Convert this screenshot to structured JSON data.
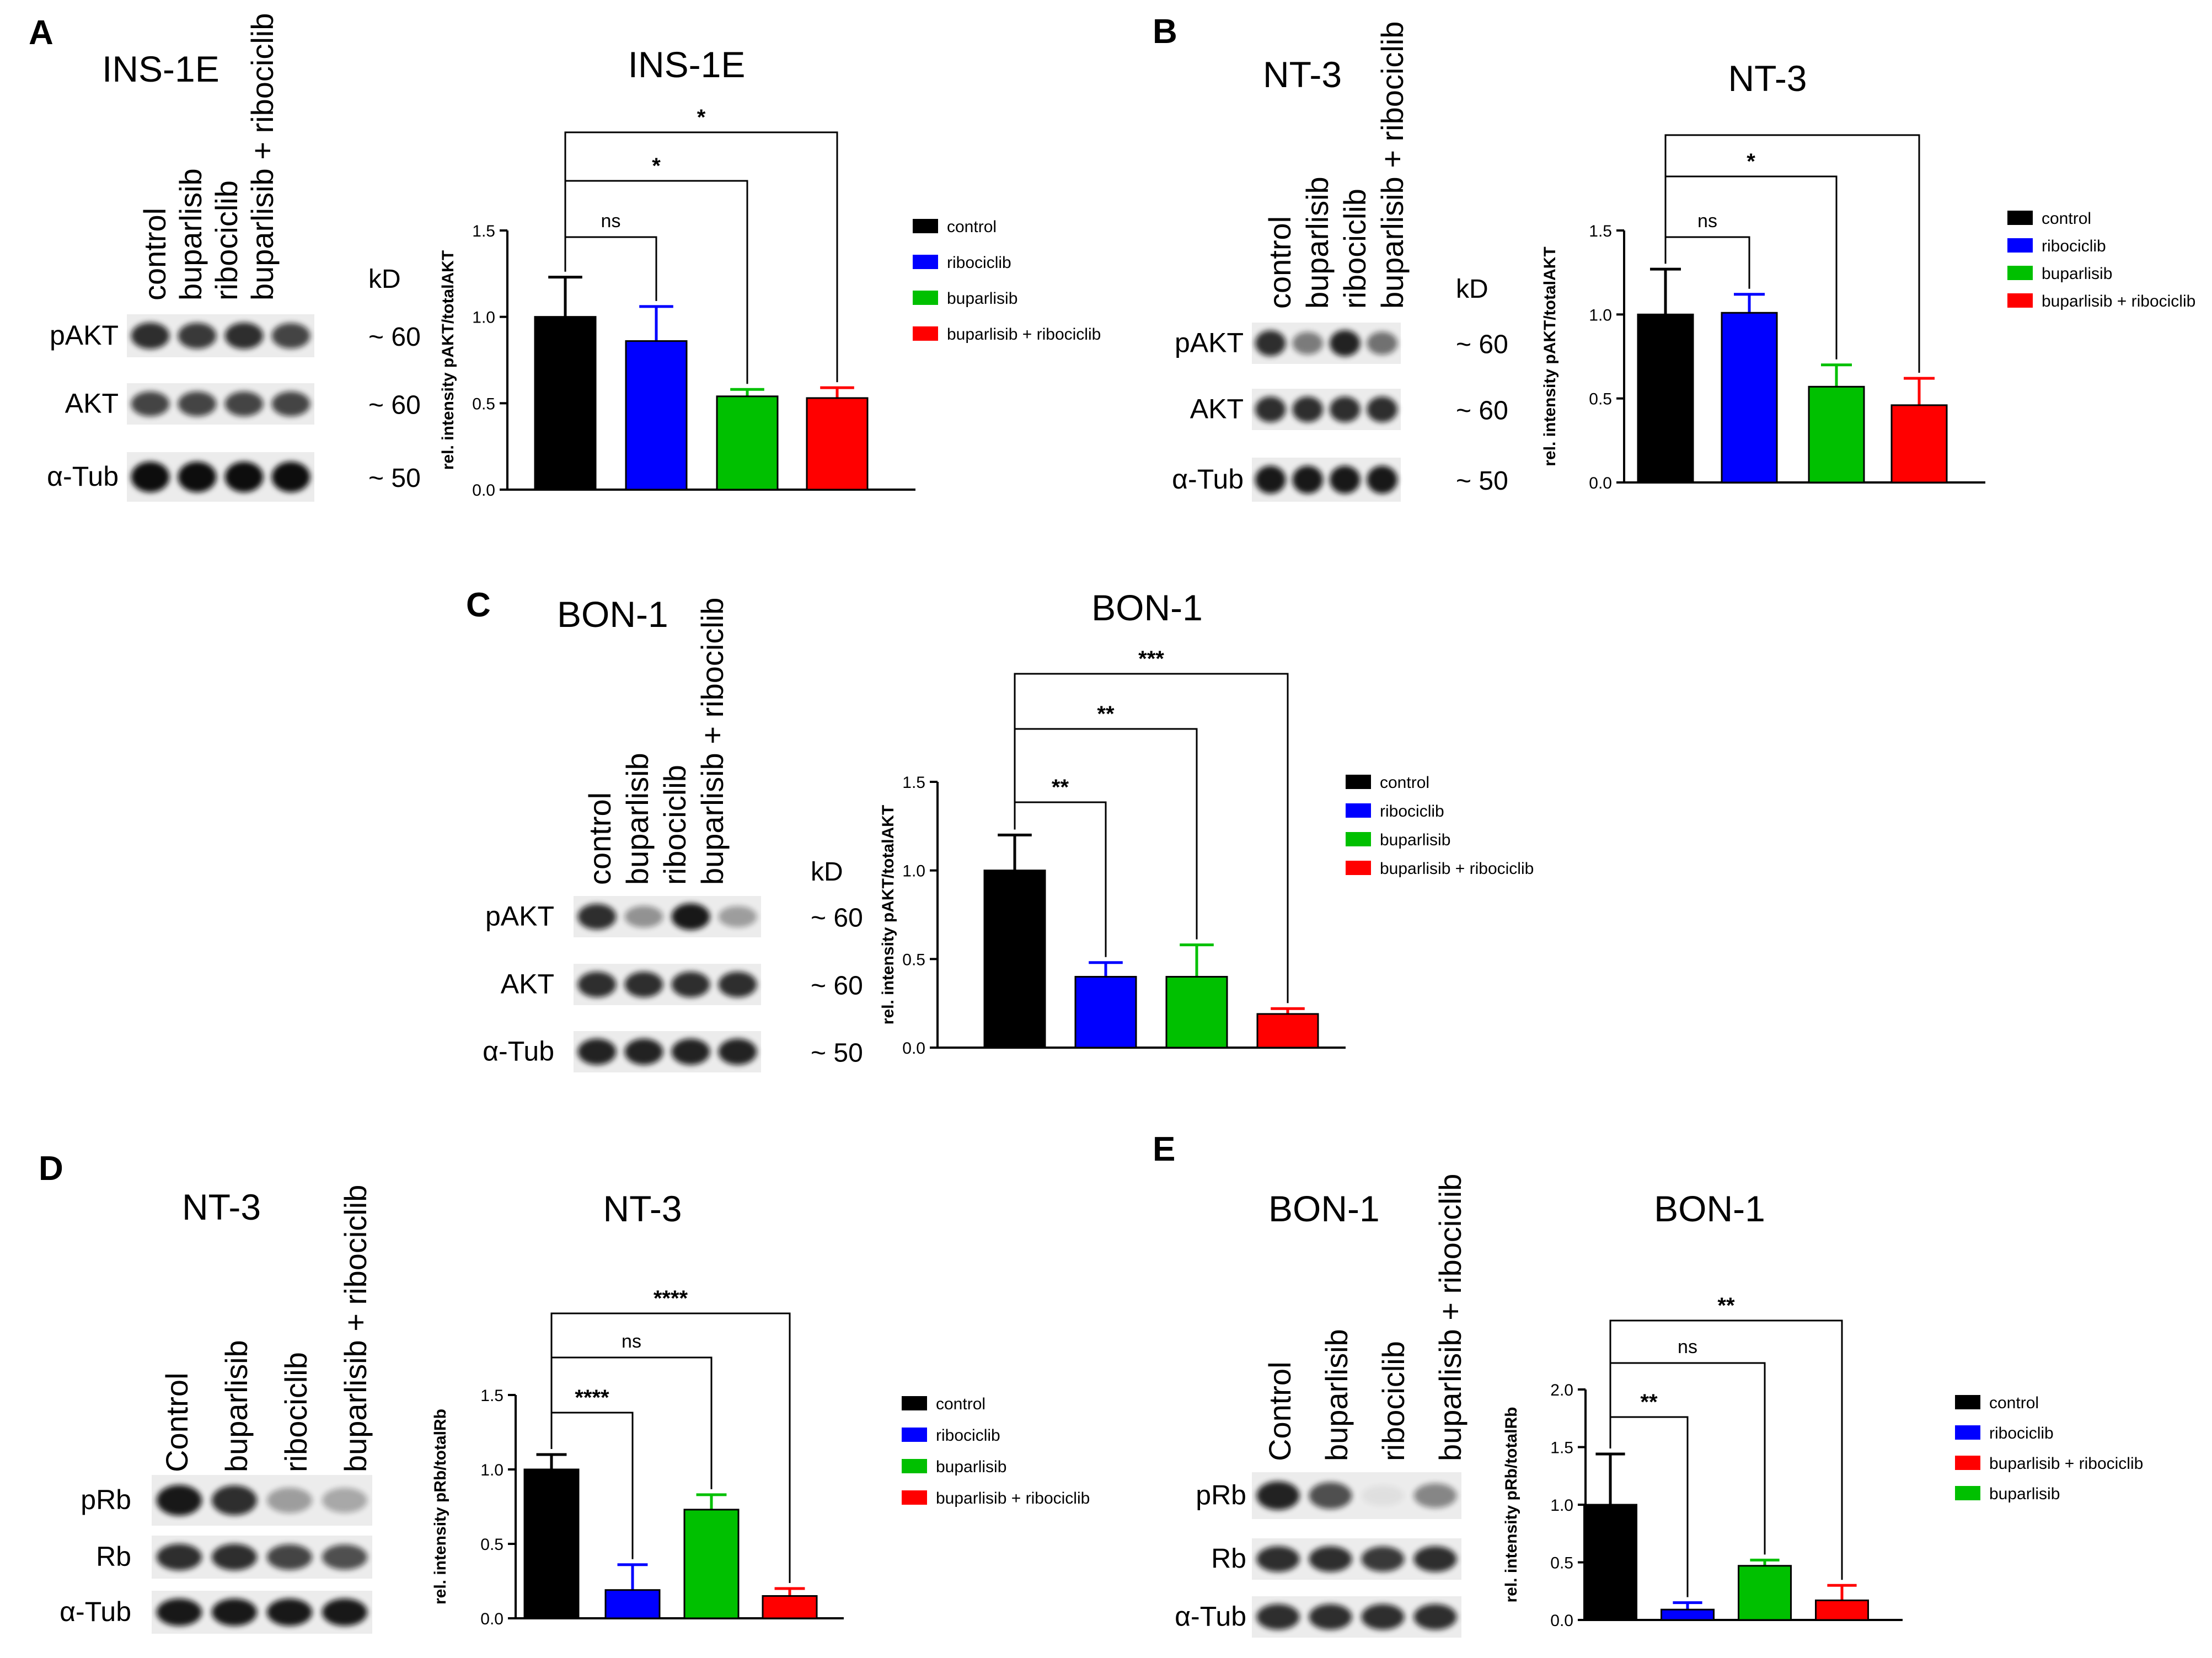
{
  "figure": {
    "panels": [
      {
        "letter": "A",
        "blot": {
          "cell_line": "INS-1E",
          "lanes": [
            "control",
            "buparlisib",
            "ribociclib",
            "buparlisib + ribociclib"
          ],
          "unit": "kD",
          "rows": [
            {
              "label": "pAKT",
              "size": "~ 60",
              "band_intensity": [
                0.85,
                0.8,
                0.85,
                0.75
              ]
            },
            {
              "label": "AKT",
              "size": "~ 60",
              "band_intensity": [
                0.75,
                0.75,
                0.75,
                0.75
              ]
            },
            {
              "label": "α-Tub",
              "size": "~ 50",
              "band_intensity": [
                1.0,
                1.0,
                1.0,
                1.0
              ]
            }
          ]
        }
      },
      {
        "letter": "B",
        "blot": {
          "cell_line": "NT-3",
          "lanes": [
            "control",
            "buparlisib",
            "ribociclib",
            "buparlisib + ribociclib"
          ],
          "unit": "kD",
          "rows": [
            {
              "label": "pAKT",
              "size": "~ 60",
              "band_intensity": [
                0.85,
                0.5,
                0.9,
                0.55
              ]
            },
            {
              "label": "AKT",
              "size": "~ 60",
              "band_intensity": [
                0.85,
                0.85,
                0.85,
                0.85
              ]
            },
            {
              "label": "α-Tub",
              "size": "~ 50",
              "band_intensity": [
                0.95,
                0.95,
                0.95,
                0.95
              ]
            }
          ]
        }
      },
      {
        "letter": "C",
        "blot": {
          "cell_line": "BON-1",
          "lanes": [
            "control",
            "buparlisib",
            "ribociclib",
            "buparlisib + ribociclib"
          ],
          "unit": "kD",
          "rows": [
            {
              "label": "pAKT",
              "size": "~ 60",
              "band_intensity": [
                0.85,
                0.4,
                0.95,
                0.35
              ]
            },
            {
              "label": "AKT",
              "size": "~ 60",
              "band_intensity": [
                0.85,
                0.85,
                0.85,
                0.85
              ]
            },
            {
              "label": "α-Tub",
              "size": "~ 50",
              "band_intensity": [
                0.9,
                0.9,
                0.9,
                0.9
              ]
            }
          ]
        }
      },
      {
        "letter": "D",
        "blot": {
          "cell_line": "NT-3",
          "lanes": [
            "Control",
            "buparlisib",
            "ribociclib",
            "buparlisib + ribociclib"
          ],
          "unit": "",
          "rows": [
            {
              "label": "pRb",
              "size": "",
              "band_intensity": [
                0.95,
                0.85,
                0.35,
                0.3
              ]
            },
            {
              "label": "Rb",
              "size": "",
              "band_intensity": [
                0.85,
                0.85,
                0.75,
                0.7
              ]
            },
            {
              "label": "α-Tub",
              "size": "",
              "band_intensity": [
                0.95,
                0.95,
                0.95,
                0.95
              ]
            }
          ]
        }
      },
      {
        "letter": "E",
        "blot": {
          "cell_line": "BON-1",
          "lanes": [
            "Control",
            "buparlisib",
            "ribociclib",
            "buparlisib + ribociclib"
          ],
          "unit": "",
          "rows": [
            {
              "label": "pRb",
              "size": "",
              "band_intensity": [
                0.9,
                0.7,
                0.05,
                0.45
              ]
            },
            {
              "label": "Rb",
              "size": "",
              "band_intensity": [
                0.85,
                0.85,
                0.8,
                0.85
              ]
            },
            {
              "label": "α-Tub",
              "size": "",
              "band_intensity": [
                0.85,
                0.85,
                0.85,
                0.85
              ]
            }
          ]
        }
      }
    ]
  },
  "chart_data": [
    {
      "type": "bar",
      "title": "INS-1E",
      "ylabel": "rel. intensity pAKT/totalAKT",
      "ylim": [
        0,
        1.5
      ],
      "yticks": [
        "0.0",
        "0.5",
        "1.0",
        "1.5"
      ],
      "categories": [
        "control",
        "ribociclib",
        "buparlisib",
        "buparlisib + ribociclib"
      ],
      "values": [
        1.0,
        0.86,
        0.54,
        0.53
      ],
      "errors": [
        0.23,
        0.2,
        0.04,
        0.06
      ],
      "colors": [
        "#000000",
        "#0000ff",
        "#00c000",
        "#ff0000"
      ],
      "legend": [
        {
          "label": "control",
          "color": "#000000"
        },
        {
          "label": "ribociclib",
          "color": "#0000ff"
        },
        {
          "label": "buparlisib",
          "color": "#00c000"
        },
        {
          "label": "buparlisib + ribociclib",
          "color": "#ff0000"
        }
      ],
      "significance": [
        {
          "from": 0,
          "to": 1,
          "label": "ns"
        },
        {
          "from": 0,
          "to": 2,
          "label": "*"
        },
        {
          "from": 0,
          "to": 3,
          "label": "*"
        }
      ]
    },
    {
      "type": "bar",
      "title": "NT-3",
      "ylabel": "rel. intensity pAKT/totalAKT",
      "ylim": [
        0,
        1.5
      ],
      "yticks": [
        "0.0",
        "0.5",
        "1.0",
        "1.5"
      ],
      "categories": [
        "control",
        "ribociclib",
        "buparlisib",
        "buparlisib + ribociclib"
      ],
      "values": [
        1.0,
        1.01,
        0.57,
        0.46
      ],
      "errors": [
        0.27,
        0.11,
        0.13,
        0.16
      ],
      "colors": [
        "#000000",
        "#0000ff",
        "#00c000",
        "#ff0000"
      ],
      "legend": [
        {
          "label": "control",
          "color": "#000000"
        },
        {
          "label": "ribociclib",
          "color": "#0000ff"
        },
        {
          "label": "buparlisib",
          "color": "#00c000"
        },
        {
          "label": "buparlisib + ribociclib",
          "color": "#ff0000"
        }
      ],
      "significance": [
        {
          "from": 0,
          "to": 1,
          "label": "ns"
        },
        {
          "from": 0,
          "to": 2,
          "label": "*"
        },
        {
          "from": 0,
          "to": 3,
          "label": ""
        }
      ]
    },
    {
      "type": "bar",
      "title": "BON-1",
      "ylabel": "rel. intensity pAKT/totalAKT",
      "ylim": [
        0,
        1.5
      ],
      "yticks": [
        "0.0",
        "0.5",
        "1.0",
        "1.5"
      ],
      "categories": [
        "control",
        "ribociclib",
        "buparlisib",
        "buparlisib + ribociclib"
      ],
      "values": [
        1.0,
        0.4,
        0.4,
        0.19
      ],
      "errors": [
        0.2,
        0.08,
        0.18,
        0.03
      ],
      "colors": [
        "#000000",
        "#0000ff",
        "#00c000",
        "#ff0000"
      ],
      "legend": [
        {
          "label": "control",
          "color": "#000000"
        },
        {
          "label": "ribociclib",
          "color": "#0000ff"
        },
        {
          "label": "buparlisib",
          "color": "#00c000"
        },
        {
          "label": "buparlisib + ribociclib",
          "color": "#ff0000"
        }
      ],
      "significance": [
        {
          "from": 0,
          "to": 1,
          "label": "**"
        },
        {
          "from": 0,
          "to": 2,
          "label": "**"
        },
        {
          "from": 0,
          "to": 3,
          "label": "***"
        }
      ]
    },
    {
      "type": "bar",
      "title": "NT-3",
      "ylabel": "rel. intensity pRb/totalRb",
      "ylim": [
        0,
        1.5
      ],
      "yticks": [
        "0.0",
        "0.5",
        "1.0",
        "1.5"
      ],
      "categories": [
        "control",
        "ribociclib",
        "buparlisib",
        "buparlisib + ribociclib"
      ],
      "values": [
        1.0,
        0.19,
        0.73,
        0.15
      ],
      "errors": [
        0.1,
        0.17,
        0.1,
        0.05
      ],
      "colors": [
        "#000000",
        "#0000ff",
        "#00c000",
        "#ff0000"
      ],
      "legend": [
        {
          "label": "control",
          "color": "#000000"
        },
        {
          "label": "ribociclib",
          "color": "#0000ff"
        },
        {
          "label": "buparlisib",
          "color": "#00c000"
        },
        {
          "label": "buparlisib + ribociclib",
          "color": "#ff0000"
        }
      ],
      "significance": [
        {
          "from": 0,
          "to": 1,
          "label": "****"
        },
        {
          "from": 0,
          "to": 2,
          "label": "ns"
        },
        {
          "from": 0,
          "to": 3,
          "label": "****"
        }
      ]
    },
    {
      "type": "bar",
      "title": "BON-1",
      "ylabel": "rel. intensity pRb/totalRb",
      "ylim": [
        0,
        2.0
      ],
      "yticks": [
        "0.0",
        "0.5",
        "1.0",
        "1.5",
        "2.0"
      ],
      "categories": [
        "control",
        "ribociclib",
        "buparlisib",
        "buparlisib + ribociclib"
      ],
      "values": [
        1.0,
        0.09,
        0.47,
        0.17
      ],
      "errors": [
        0.44,
        0.06,
        0.05,
        0.13
      ],
      "colors": [
        "#000000",
        "#0000ff",
        "#00c000",
        "#ff0000"
      ],
      "legend": [
        {
          "label": "control",
          "color": "#000000"
        },
        {
          "label": "ribociclib",
          "color": "#0000ff"
        },
        {
          "label": "buparlisib + ribociclib",
          "color": "#ff0000"
        },
        {
          "label": "buparlisib",
          "color": "#00c000"
        }
      ],
      "significance": [
        {
          "from": 0,
          "to": 1,
          "label": "**"
        },
        {
          "from": 0,
          "to": 2,
          "label": "ns"
        },
        {
          "from": 0,
          "to": 3,
          "label": "**"
        }
      ]
    }
  ]
}
